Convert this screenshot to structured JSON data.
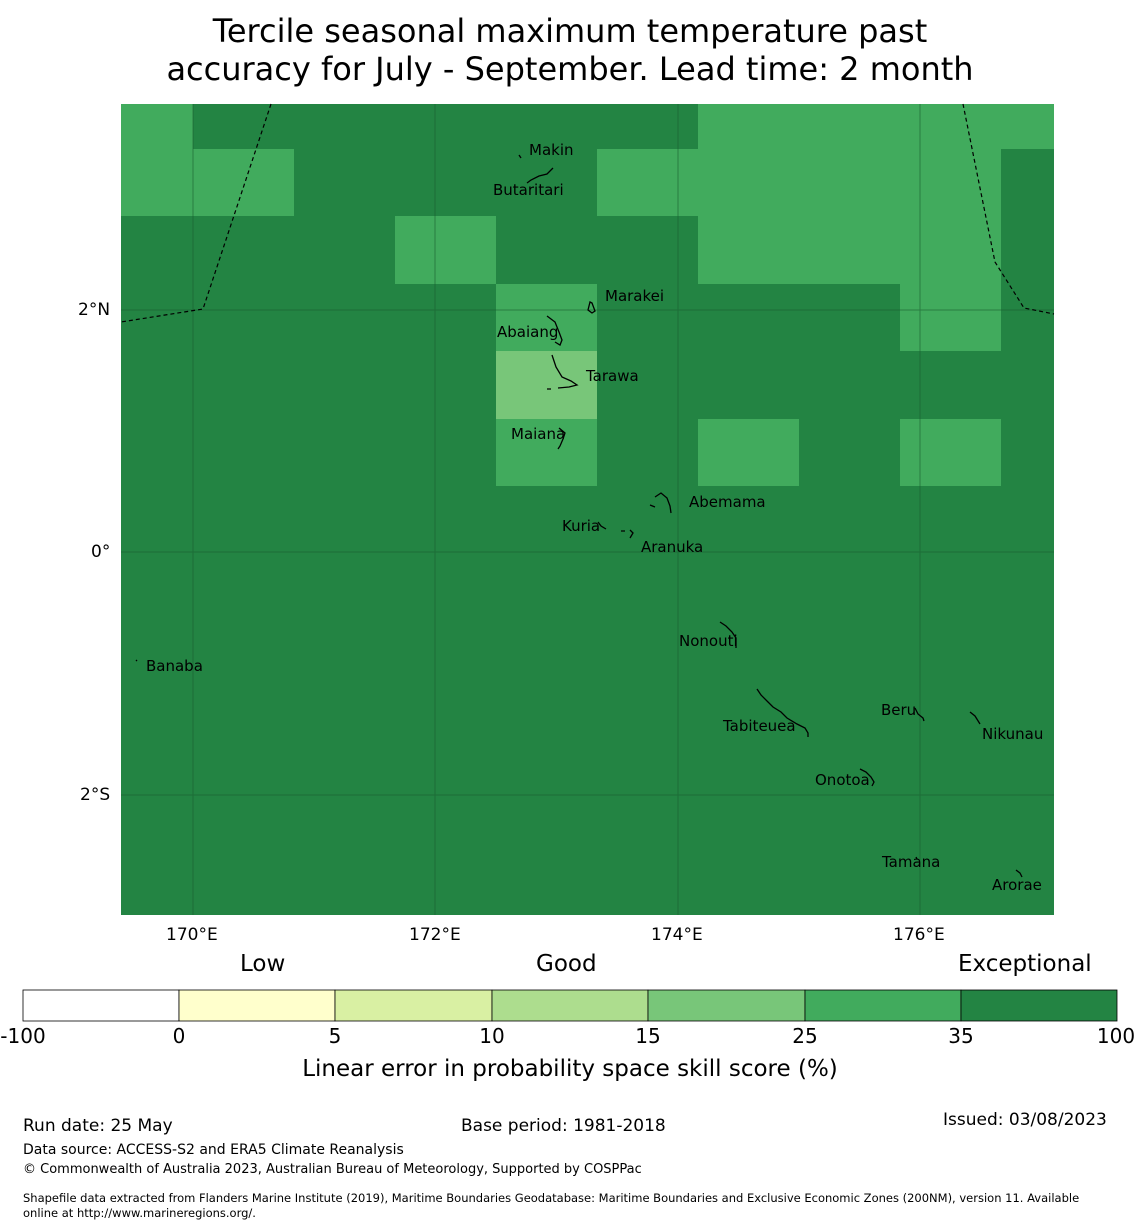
{
  "title": {
    "line1": "Tercile seasonal maximum temperature past",
    "line2": "accuracy for July - September. Lead time: 2 month"
  },
  "map": {
    "x_ticks": [
      "170°E",
      "172°E",
      "174°E",
      "176°E"
    ],
    "y_ticks": [
      "2°N",
      "0°",
      "2°S"
    ],
    "places": [
      "Makin",
      "Butaritari",
      "Marakei",
      "Abaiang",
      "Tarawa",
      "Maiana",
      "Abemama",
      "Kuria",
      "Aranuka",
      "Banaba",
      "Nonouti",
      "Tabiteuea",
      "Beru",
      "Nikunau",
      "Onotoa",
      "Tamana",
      "Arorae"
    ],
    "colors": {
      "exceptional": "#238443",
      "good_35": "#41ab5d",
      "good_25": "#78c679"
    }
  },
  "colorbar": {
    "category_labels": {
      "low": "Low",
      "good": "Good",
      "exceptional": "Exceptional"
    },
    "ticks": [
      "-100",
      "0",
      "5",
      "10",
      "15",
      "25",
      "35",
      "100"
    ],
    "colors": [
      "#ffffff",
      "#ffffcc",
      "#d9f0a3",
      "#addd8e",
      "#78c679",
      "#41ab5d",
      "#238443"
    ],
    "label": "Linear error in probability space skill score (%)"
  },
  "footer": {
    "run_date": "Run date: 25 May",
    "base_period": "Base period: 1981-2018",
    "issued": "Issued: 03/08/2023",
    "data_source": "Data source: ACCESS-S2 and ERA5 Climate Reanalysis",
    "copyright": "© Commonwealth of Australia 2023, Australian Bureau of Meteorology, Supported by COSPPac",
    "shapefile_line1": "Shapefile data extracted from Flanders Marine Institute (2019), Maritime Boundaries Geodatabase: Maritime Boundaries and Exclusive Economic Zones (200NM), version 11. Available",
    "shapefile_line2": "online at http://www.marineregions.org/."
  }
}
